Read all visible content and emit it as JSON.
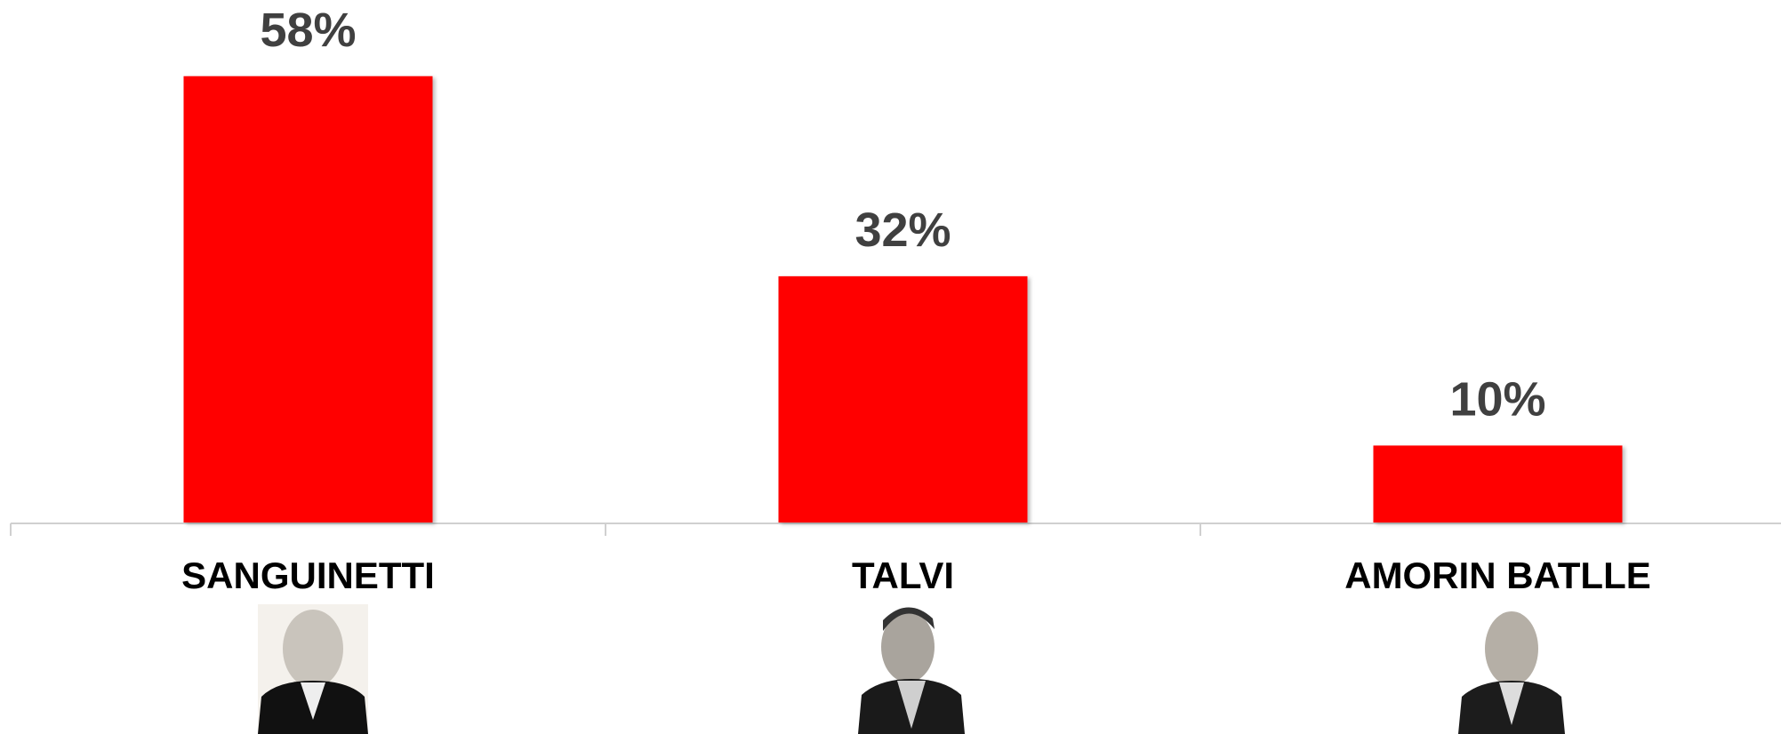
{
  "chart_data": {
    "type": "bar",
    "categories": [
      "SANGUINETTI",
      "TALVI",
      "AMORIN BATLLE"
    ],
    "values": [
      58,
      32,
      10
    ],
    "value_labels": [
      "58%",
      "32%",
      "10%"
    ],
    "color": "#ff0000"
  }
}
